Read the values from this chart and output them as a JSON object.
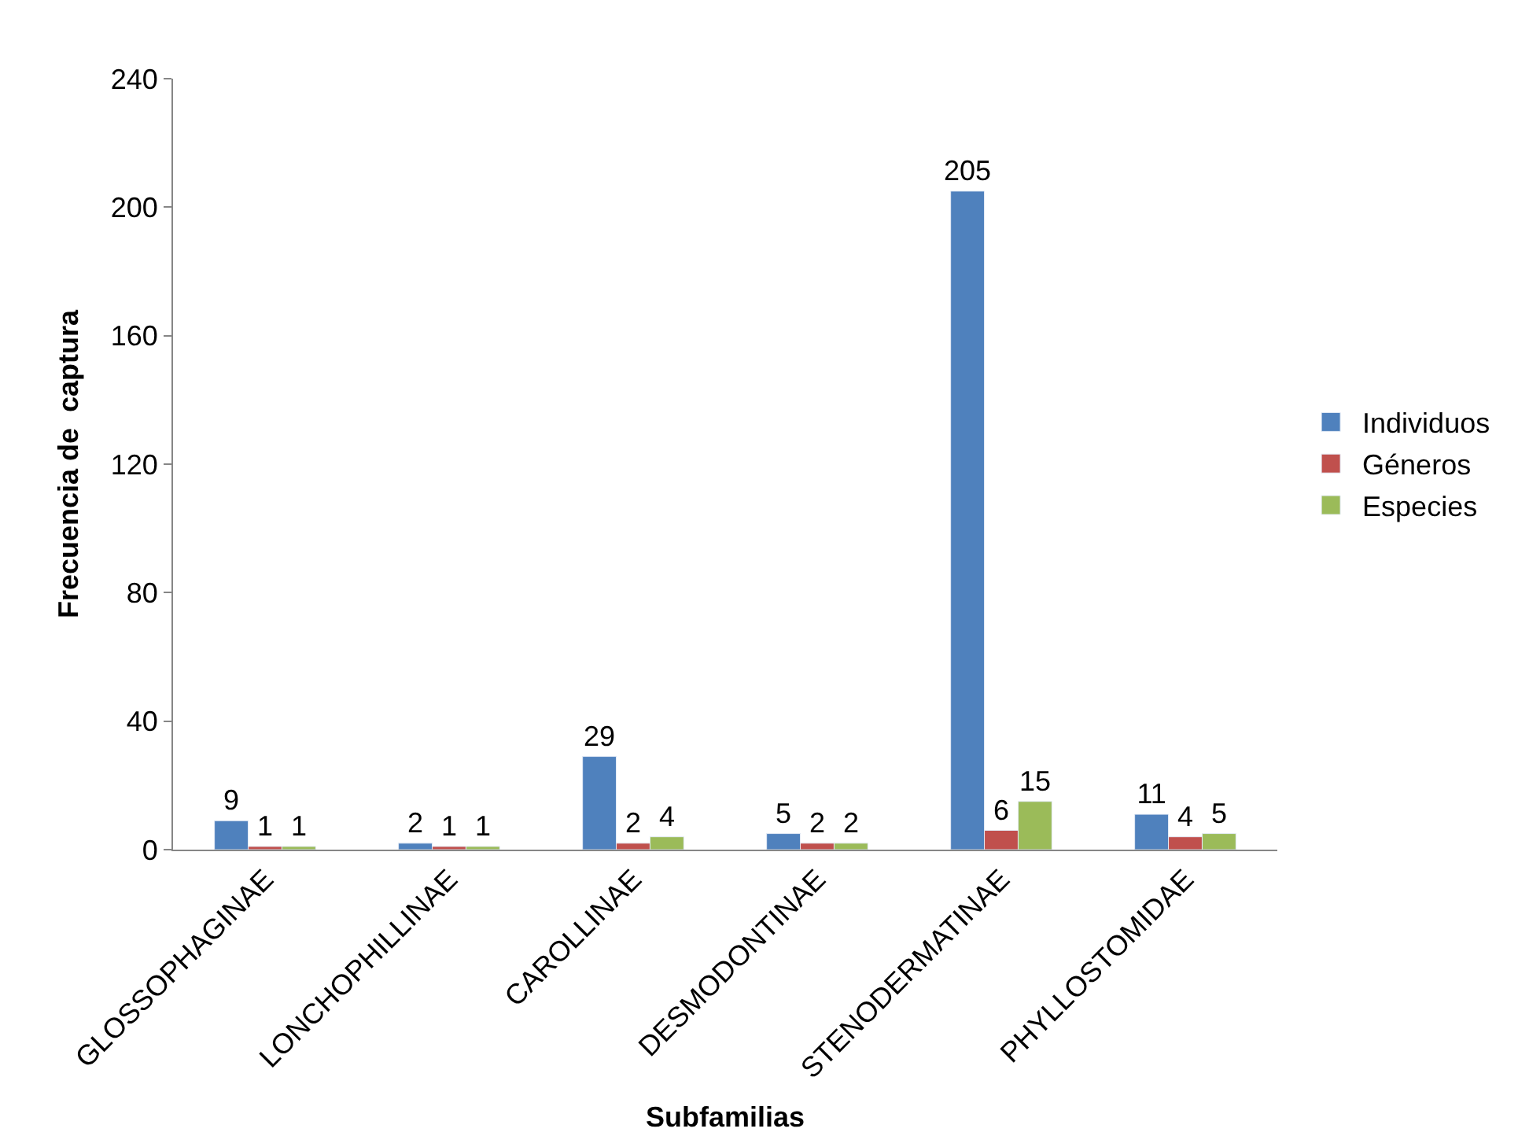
{
  "chart_data": {
    "type": "bar",
    "xlabel": "Subfamilias",
    "ylabel": "Frecuencia de  captura",
    "categories": [
      "GLOSSOPHAGINAE",
      "LONCHOPHILLINAE",
      "CAROLLINAE",
      "DESMODONTINAE",
      "STENODERMATINAE",
      "PHYLLOSTOMIDAE"
    ],
    "series": [
      {
        "name": "Individuos",
        "color": "#4f81bd",
        "values": [
          9,
          2,
          29,
          5,
          205,
          11
        ]
      },
      {
        "name": "Géneros",
        "color": "#c0504d",
        "values": [
          1,
          1,
          2,
          2,
          6,
          4
        ]
      },
      {
        "name": "Especies",
        "color": "#9bbb59",
        "values": [
          1,
          1,
          4,
          2,
          15,
          5
        ]
      }
    ],
    "ylim": [
      0,
      240
    ],
    "yticks": [
      0,
      40,
      80,
      120,
      160,
      200,
      240
    ],
    "legend": "right",
    "data_labels": true
  }
}
